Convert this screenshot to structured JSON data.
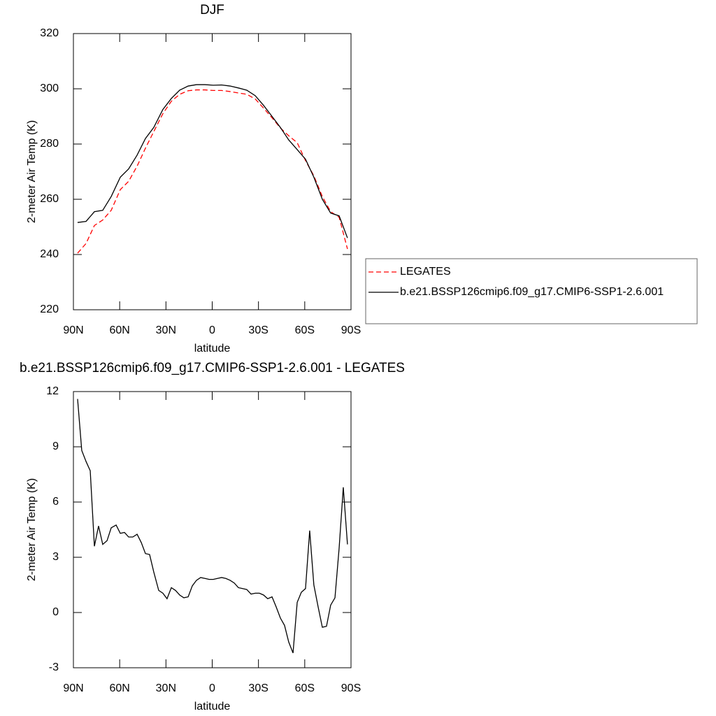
{
  "chart_data": [
    {
      "type": "line",
      "title": "DJF",
      "xlabel": "latitude",
      "ylabel": "2-meter Air Temp (K)",
      "x": [
        87.3,
        81.8,
        76.4,
        71,
        65.5,
        59.6,
        54.2,
        48.7,
        43.3,
        37.9,
        32,
        26.5,
        21.1,
        15.6,
        10.2,
        4.7,
        -0.7,
        -6.1,
        -11.6,
        -17,
        -22.4,
        -27.9,
        -33.3,
        -38.8,
        -44.2,
        -49.6,
        -55.1,
        -60.5,
        -65.9,
        -71.4,
        -76.8,
        -82.3,
        -87.7
      ],
      "series": [
        {
          "name": "LEGATES",
          "color": "#ff0000",
          "dashed": true,
          "values": [
            240.5,
            244,
            250.5,
            252.5,
            256,
            263.5,
            266.5,
            272,
            278.5,
            284.5,
            291,
            295.5,
            298,
            299.3,
            299.6,
            299.6,
            299.4,
            299.4,
            299,
            298.5,
            298,
            296.3,
            293,
            289.5,
            285.8,
            283,
            280.5,
            274,
            268.5,
            261,
            255.5,
            253.5,
            242
          ]
        },
        {
          "name": "b.e21.BSSP126cmip6.f09_g17.CMIP6-SSP1-2.6.001",
          "color": "#000000",
          "dashed": false,
          "values": [
            251.6,
            252,
            255.5,
            256,
            261,
            268,
            271,
            276,
            282,
            286,
            292.5,
            296.5,
            299.5,
            301,
            301.5,
            301.5,
            301.3,
            301.4,
            301,
            300.3,
            299.5,
            297.5,
            294,
            290,
            286,
            281.5,
            278,
            274.5,
            268,
            260,
            255,
            254,
            246
          ]
        }
      ],
      "xlim": [
        90,
        -90
      ],
      "xticks": [
        {
          "value": 90,
          "label": "90N"
        },
        {
          "value": 60,
          "label": "60N"
        },
        {
          "value": 30,
          "label": "30N"
        },
        0,
        {
          "value": -30,
          "label": "30S"
        },
        {
          "value": -60,
          "label": "60S"
        },
        {
          "value": -90,
          "label": "90S"
        }
      ],
      "ylim": [
        220,
        320
      ],
      "yticks": [
        220,
        240,
        260,
        280,
        300,
        320
      ],
      "legend": "right"
    },
    {
      "type": "line",
      "title": "b.e21.BSSP126cmip6.f09_g17.CMIP6-SSP1-2.6.001 - LEGATES",
      "xlabel": "latitude",
      "ylabel": "2-meter Air Temp (K)",
      "x": [
        87.3,
        84.6,
        81.8,
        79.1,
        76.4,
        73.7,
        71,
        68.2,
        65.5,
        62.3,
        59.6,
        56.9,
        54.2,
        51.5,
        48.7,
        46,
        43.3,
        40.6,
        37.9,
        34.7,
        32,
        29.3,
        26.5,
        23.8,
        21.1,
        18.4,
        15.6,
        12.9,
        10.2,
        7.5,
        4.7,
        2,
        -0.7,
        -3.4,
        -6.1,
        -8.8,
        -11.6,
        -14.3,
        -17,
        -19.7,
        -22.4,
        -25.2,
        -27.9,
        -30.6,
        -33.3,
        -36,
        -38.8,
        -41.5,
        -44.2,
        -46.9,
        -49.6,
        -52.4,
        -55.1,
        -57.8,
        -60.5,
        -63.2,
        -65.9,
        -68.7,
        -71.4,
        -74.1,
        -76.8,
        -79.6,
        -82.3,
        -85,
        -87.7
      ],
      "series": [
        {
          "color": "#000000",
          "dashed": false,
          "values": [
            11.6,
            8.8,
            8.2,
            7.7,
            3.6,
            4.7,
            3.7,
            3.9,
            4.6,
            4.75,
            4.3,
            4.35,
            4.1,
            4.1,
            4.25,
            3.8,
            3.2,
            3.15,
            2.2,
            1.2,
            1.05,
            0.75,
            1.35,
            1.2,
            0.95,
            0.8,
            0.85,
            1.45,
            1.75,
            1.9,
            1.85,
            1.8,
            1.8,
            1.85,
            1.9,
            1.85,
            1.75,
            1.6,
            1.35,
            1.3,
            1.25,
            1.0,
            1.05,
            1.05,
            0.95,
            0.75,
            0.85,
            0.3,
            -0.3,
            -0.7,
            -1.6,
            -2.2,
            0.55,
            1.1,
            1.3,
            4.45,
            1.5,
            0.3,
            -0.8,
            -0.75,
            0.4,
            0.8,
            3.5,
            6.8,
            3.7
          ]
        }
      ],
      "xlim": [
        90,
        -90
      ],
      "xticks": [
        {
          "value": 90,
          "label": "90N"
        },
        {
          "value": 60,
          "label": "60N"
        },
        {
          "value": 30,
          "label": "30N"
        },
        0,
        {
          "value": -30,
          "label": "30S"
        },
        {
          "value": -60,
          "label": "60S"
        },
        {
          "value": -90,
          "label": "90S"
        }
      ],
      "ylim": [
        -3,
        12
      ],
      "yticks": [
        -3,
        0,
        3,
        6,
        9,
        12
      ]
    }
  ]
}
